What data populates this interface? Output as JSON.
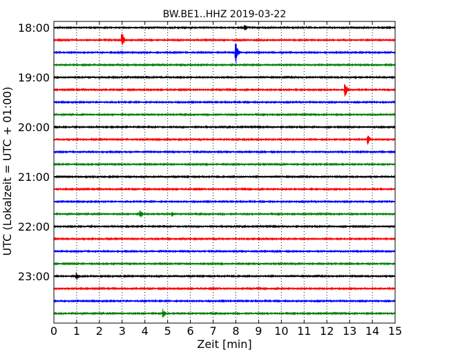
{
  "chart_data": {
    "type": "line",
    "title": "BW.BE1..HHZ 2019-03-22",
    "xlabel": "Zeit  [min]",
    "ylabel": "UTC (Lokalzeit = UTC + 01:00)",
    "xlim": [
      0,
      15
    ],
    "x_ticks": [
      0,
      1,
      2,
      3,
      4,
      5,
      6,
      7,
      8,
      9,
      10,
      11,
      12,
      13,
      14,
      15
    ],
    "vertical_grid": "dotted",
    "y_tick_labels": [
      "18:00",
      "19:00",
      "20:00",
      "21:00",
      "22:00",
      "23:00"
    ],
    "trace_interval_min": 15,
    "color_cycle": [
      "#000000",
      "#ff0000",
      "#0000ff",
      "#008000"
    ],
    "traces": [
      {
        "start": "18:00",
        "events": [
          {
            "t": 4.4,
            "amp": 0.06
          },
          {
            "t": 8.4,
            "amp": 0.3
          }
        ]
      },
      {
        "start": "18:15",
        "events": [
          {
            "t": 3.0,
            "amp": 0.75
          }
        ]
      },
      {
        "start": "18:30",
        "events": [
          {
            "t": 2.5,
            "amp": 0.1
          },
          {
            "t": 8.0,
            "amp": 1.0
          },
          {
            "t": 9.0,
            "amp": 0.1
          }
        ]
      },
      {
        "start": "18:45",
        "events": []
      },
      {
        "start": "19:00",
        "events": []
      },
      {
        "start": "19:15",
        "events": [
          {
            "t": 12.8,
            "amp": 0.75
          }
        ]
      },
      {
        "start": "19:30",
        "events": []
      },
      {
        "start": "19:45",
        "events": [
          {
            "t": 1.0,
            "amp": 0.06
          }
        ]
      },
      {
        "start": "20:00",
        "events": []
      },
      {
        "start": "20:15",
        "events": [
          {
            "t": 13.8,
            "amp": 0.45
          }
        ]
      },
      {
        "start": "20:30",
        "events": []
      },
      {
        "start": "20:45",
        "events": []
      },
      {
        "start": "21:00",
        "events": []
      },
      {
        "start": "21:15",
        "events": []
      },
      {
        "start": "21:30",
        "events": []
      },
      {
        "start": "21:45",
        "events": [
          {
            "t": 3.8,
            "amp": 0.35
          },
          {
            "t": 5.2,
            "amp": 0.2
          }
        ]
      },
      {
        "start": "22:00",
        "events": []
      },
      {
        "start": "22:15",
        "events": [
          {
            "t": 5.1,
            "amp": 0.12
          }
        ]
      },
      {
        "start": "22:30",
        "events": []
      },
      {
        "start": "22:45",
        "events": []
      },
      {
        "start": "23:00",
        "events": [
          {
            "t": 1.0,
            "amp": 0.35
          }
        ]
      },
      {
        "start": "23:15",
        "events": [
          {
            "t": 11.8,
            "amp": 0.06
          }
        ]
      },
      {
        "start": "23:30",
        "events": [
          {
            "t": 4.0,
            "amp": 0.1
          }
        ]
      },
      {
        "start": "23:45",
        "events": [
          {
            "t": 4.8,
            "amp": 0.4
          }
        ]
      }
    ]
  }
}
